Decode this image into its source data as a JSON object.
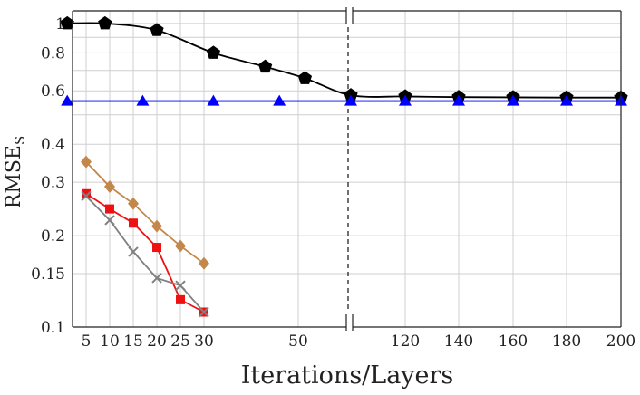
{
  "chart_data": {
    "type": "line",
    "xlabel": "Iterations/Layers",
    "ylabel": "RMSE",
    "ylabel_subscript": "S",
    "y_scale": "log",
    "ylim": [
      0.1,
      1.1
    ],
    "grid": true,
    "axis_break": true,
    "y_ticks": [
      {
        "value": 0.1,
        "label": "0.1"
      },
      {
        "value": 0.15,
        "label": "0.15"
      },
      {
        "value": 0.2,
        "label": "0.2"
      },
      {
        "value": 0.3,
        "label": "0.3"
      },
      {
        "value": 0.4,
        "label": "0.4"
      },
      {
        "value": 0.6,
        "label": "0.6"
      },
      {
        "value": 0.8,
        "label": "0.8"
      },
      {
        "value": 1,
        "label": "1"
      }
    ],
    "x_ticks_left": [
      {
        "value": 5,
        "label": "5"
      },
      {
        "value": 10,
        "label": "10"
      },
      {
        "value": 15,
        "label": "15"
      },
      {
        "value": 20,
        "label": "20"
      },
      {
        "value": 25,
        "label": "25"
      },
      {
        "value": 30,
        "label": "30"
      },
      {
        "value": 50,
        "label": "50"
      }
    ],
    "x_ticks_right": [
      {
        "value": 120,
        "label": "120"
      },
      {
        "value": 140,
        "label": "140"
      },
      {
        "value": 160,
        "label": "160"
      },
      {
        "value": 180,
        "label": "180"
      },
      {
        "value": 200,
        "label": "200"
      }
    ],
    "series": [
      {
        "color": "#000000",
        "marker": "pentagon",
        "smooth": true,
        "points": [
          [
            1,
            1.0
          ],
          [
            9,
            1.0
          ],
          [
            20,
            0.95
          ],
          [
            32,
            0.8
          ],
          [
            43,
            0.72
          ],
          [
            55,
            0.66
          ],
          [
            100,
            0.58
          ],
          [
            120,
            0.575
          ],
          [
            140,
            0.572
          ],
          [
            160,
            0.571
          ],
          [
            180,
            0.57
          ],
          [
            200,
            0.57
          ]
        ]
      },
      {
        "color": "#0000ff",
        "marker": "triangle",
        "smooth": false,
        "points": [
          [
            1,
            0.555
          ],
          [
            17,
            0.555
          ],
          [
            32,
            0.555
          ],
          [
            46,
            0.555
          ],
          [
            100,
            0.555
          ],
          [
            120,
            0.555
          ],
          [
            140,
            0.555
          ],
          [
            160,
            0.555
          ],
          [
            180,
            0.555
          ],
          [
            200,
            0.555
          ]
        ]
      },
      {
        "color": "#c4874a",
        "marker": "diamond",
        "smooth": false,
        "points": [
          [
            5,
            0.35
          ],
          [
            10,
            0.29
          ],
          [
            15,
            0.255
          ],
          [
            20,
            0.215
          ],
          [
            25,
            0.185
          ],
          [
            30,
            0.162
          ]
        ]
      },
      {
        "color": "#ee1111",
        "marker": "square",
        "smooth": false,
        "points": [
          [
            5,
            0.275
          ],
          [
            10,
            0.245
          ],
          [
            15,
            0.22
          ],
          [
            20,
            0.183
          ],
          [
            25,
            0.123
          ],
          [
            30,
            0.112
          ]
        ]
      },
      {
        "color": "#808080",
        "marker": "cross",
        "smooth": false,
        "points": [
          [
            5,
            0.27
          ],
          [
            10,
            0.225
          ],
          [
            15,
            0.177
          ],
          [
            20,
            0.145
          ],
          [
            25,
            0.137
          ],
          [
            30,
            0.112
          ]
        ]
      }
    ]
  }
}
